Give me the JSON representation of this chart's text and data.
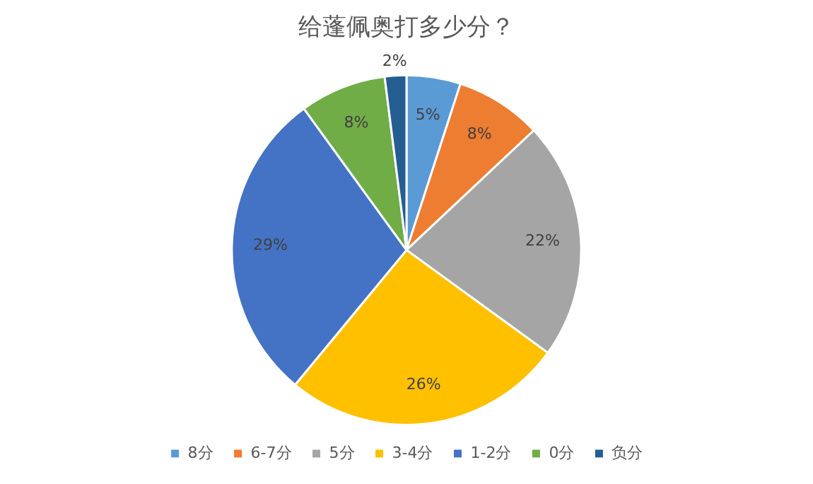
{
  "chart_data": {
    "type": "pie",
    "title": "给蓬佩奥打多少分？",
    "categories": [
      "8分",
      "6-7分",
      "5分",
      "3-4分",
      "1-2分",
      "0分",
      "负分"
    ],
    "values": [
      5,
      8,
      22,
      26,
      29,
      8,
      2
    ],
    "value_labels": [
      "5%",
      "8%",
      "22%",
      "26%",
      "29%",
      "8%",
      "2%"
    ],
    "colors": [
      "#5b9bd5",
      "#ed7d31",
      "#a5a5a5",
      "#ffc000",
      "#4472c4",
      "#70ad47",
      "#255e91"
    ],
    "legend": "bottom"
  }
}
